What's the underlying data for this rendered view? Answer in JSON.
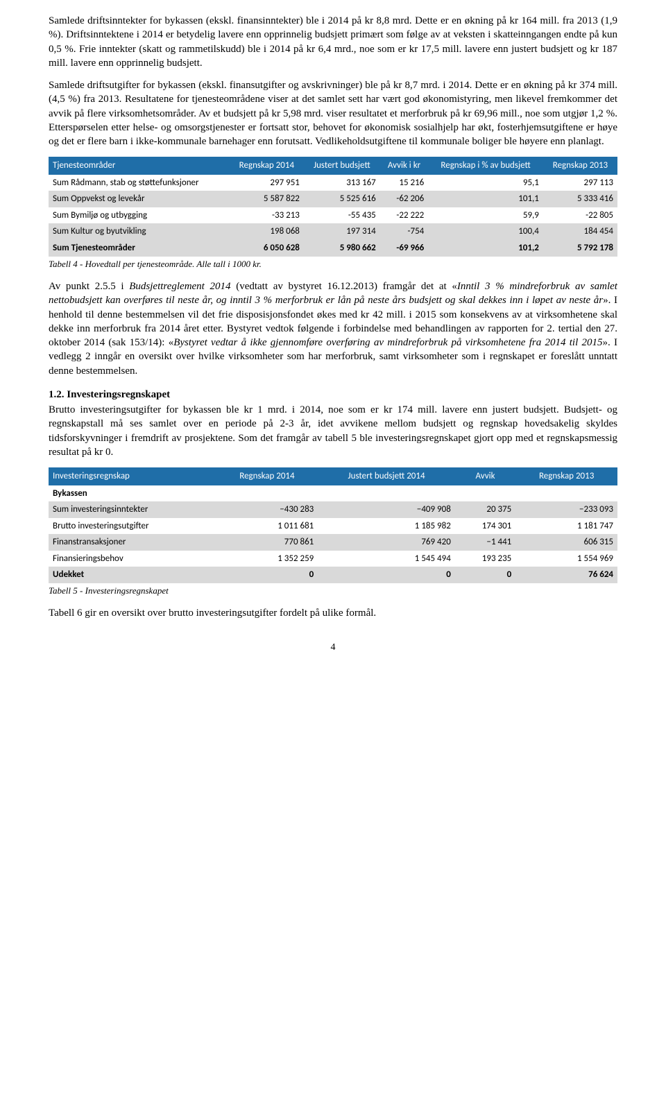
{
  "para1": "Samlede driftsinntekter for bykassen (ekskl. finansinntekter) ble i 2014 på kr 8,8 mrd. Dette er en økning på kr 164 mill. fra 2013 (1,9 %). Driftsinntektene i 2014 er betydelig lavere enn opprinnelig budsjett primært som følge av at veksten i skatteinngangen endte på kun 0,5 %. Frie inntekter (skatt og rammetilskudd) ble i 2014 på kr 6,4 mrd., noe som er kr 17,5 mill. lavere enn justert budsjett og kr 187 mill. lavere enn opprinnelig budsjett.",
  "para2_a": "Samlede driftsutgifter for bykassen (ekskl. finansutgifter og avskrivninger) ble på kr 8,7 mrd. i 2014. Dette er en økning på kr 374 mill. (4,5 %) fra 2013. Resultatene for tjenesteområdene viser at det samlet sett har vært god økonomistyring, men likevel fremkommer det avvik på flere virksomhetsområder. Av et budsjett på kr 5,98 mrd. viser resultatet et merforbruk på kr 69,96 mill., noe som utgjør 1,2 %. Etterspørselen etter helse- og omsorgstjenester er fortsatt stor, behovet for økonomisk sosialhjelp har økt, fosterhjemsutgiftene er høye og det er flere barn i ikke-kommunale barnehager enn forutsatt. Vedlikeholdsutgiftene til kommunale boliger ble høyere enn planlagt.",
  "table1": {
    "headers": [
      "Tjenesteområder",
      "Regnskap 2014",
      "Justert budsjett",
      "Avvik i kr",
      "Regnskap i % av budsjett",
      "Regnskap 2013"
    ],
    "rows": [
      {
        "label": "Sum Rådmann, stab og støttefunksjoner",
        "c1": "297 951",
        "c2": "313 167",
        "c3": "15 216",
        "c4": "95,1",
        "c5": "297 113",
        "shade": false
      },
      {
        "label": "Sum Oppvekst og levekår",
        "c1": "5 587 822",
        "c2": "5 525 616",
        "c3": "-62 206",
        "c4": "101,1",
        "c5": "5 333 416",
        "shade": true
      },
      {
        "label": "Sum Bymiljø og utbygging",
        "c1": "-33 213",
        "c2": "-55 435",
        "c3": "-22 222",
        "c4": "59,9",
        "c5": "-22 805",
        "shade": false
      },
      {
        "label": "Sum Kultur og byutvikling",
        "c1": "198 068",
        "c2": "197 314",
        "c3": "-754",
        "c4": "100,4",
        "c5": "184 454",
        "shade": true
      }
    ],
    "sumrow": {
      "label": "Sum Tjenesteområder",
      "c1": "6 050 628",
      "c2": "5 980 662",
      "c3": "-69 966",
      "c4": "101,2",
      "c5": "5 792 178"
    },
    "caption": "Tabell 4 - Hovedtall per tjenesteområde. Alle tall i 1000 kr."
  },
  "para3_pre": "Av punkt 2.5.5 i ",
  "para3_it1": "Budsjettreglement 2014",
  "para3_mid1": " (vedtatt av bystyret 16.12.2013) framgår det at «",
  "para3_it2": "Inntil 3 % mindreforbruk av samlet nettobudsjett kan overføres til neste år, og inntil 3 % merforbruk er lån på neste års budsjett og skal dekkes inn i løpet av neste år",
  "para3_mid2": "». I henhold til denne bestemmelsen vil det frie disposisjonsfondet økes med kr 42 mill. i 2015 som konsekvens av at virksomhetene skal dekke inn merforbruk fra 2014 året etter. Bystyret vedtok følgende i forbindelse med behandlingen av rapporten for 2. tertial den 27. oktober 2014 (sak 153/14): «",
  "para3_it3": "Bystyret vedtar å ikke gjennomføre overføring av mindreforbruk på virksomhetene fra 2014 til 2015",
  "para3_post": "». I vedlegg 2 inngår en oversikt over hvilke virksomheter som har merforbruk, samt virksomheter som i regnskapet er foreslått unntatt denne bestemmelsen.",
  "heading12": "1.2. Investeringsregnskapet",
  "para4": "Brutto investeringsutgifter for bykassen ble kr 1 mrd. i 2014, noe som er kr 174 mill. lavere enn justert budsjett. Budsjett- og regnskapstall må ses samlet over en periode på 2-3 år, idet avvikene mellom budsjett og regnskap hovedsakelig skyldes tidsforskyvninger i fremdrift av prosjektene. Som det framgår av tabell 5 ble investeringsregnskapet gjort opp med et regnskapsmessig resultat på kr 0.",
  "table2": {
    "headers": [
      "Investeringsregnskap",
      "Regnskap 2014",
      "Justert budsjett 2014",
      "Avvik",
      "Regnskap 2013"
    ],
    "sub": "Bykassen",
    "rows": [
      {
        "label": "Sum investeringsinntekter",
        "c1": "−430 283",
        "c2": "−409 908",
        "c3": "20 375",
        "c4": "−233 093",
        "shade": true
      },
      {
        "label": "Brutto investeringsutgifter",
        "c1": "1 011 681",
        "c2": "1 185 982",
        "c3": "174 301",
        "c4": "1 181 747",
        "shade": false
      },
      {
        "label": "Finanstransaksjoner",
        "c1": "770 861",
        "c2": "769 420",
        "c3": "−1 441",
        "c4": "606 315",
        "shade": true
      },
      {
        "label": "Finansieringsbehov",
        "c1": "1 352 259",
        "c2": "1 545 494",
        "c3": "193 235",
        "c4": "1 554 969",
        "shade": false
      }
    ],
    "sumrow": {
      "label": "Udekket",
      "c1": "0",
      "c2": "0",
      "c3": "0",
      "c4": "76 624"
    },
    "caption": "Tabell 5 - Investeringsregnskapet"
  },
  "para5": "Tabell 6 gir en oversikt over brutto investeringsutgifter fordelt på ulike formål.",
  "pagenum": "4"
}
